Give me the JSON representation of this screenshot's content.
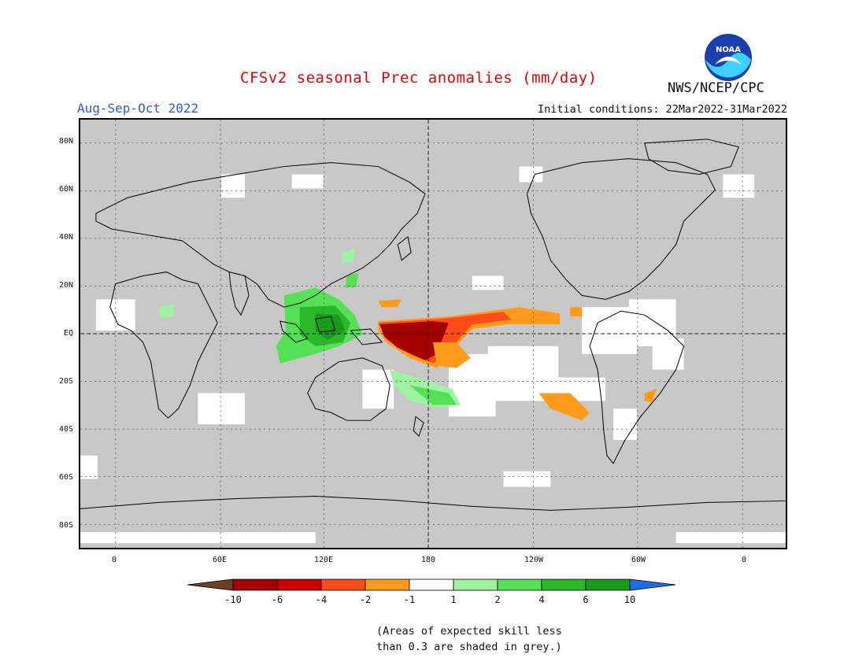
{
  "header": {
    "title": "CFSv2 seasonal Prec anomalies (mm/day)",
    "season": "Aug-Sep-Oct 2022",
    "initial_conditions": "Initial conditions: 22Mar2022-31Mar2022",
    "agency": "NWS/NCEP/CPC",
    "logo_text": "NOAA"
  },
  "axes": {
    "lat_labels": [
      "80N",
      "60N",
      "40N",
      "20N",
      "EQ",
      "20S",
      "40S",
      "60S",
      "80S"
    ],
    "lon_labels": [
      "0",
      "60E",
      "120E",
      "180",
      "120W",
      "60W",
      "0"
    ]
  },
  "legend": {
    "tick_labels": [
      "-10",
      "-6",
      "-4",
      "-2",
      "-1",
      "1",
      "2",
      "4",
      "6",
      "10"
    ],
    "colors": [
      "#6b4226",
      "#a50000",
      "#cc0000",
      "#ff4a1a",
      "#ff9a1a",
      "#ffffff",
      "#9ff29f",
      "#55e055",
      "#2ab82a",
      "#1a9a1a",
      "#1f6fe0"
    ]
  },
  "colors": {
    "land_mask": "#c8c8c8",
    "grid_line": "#555555"
  },
  "footnote": {
    "line1": "(Areas of expected skill less",
    "line2": "than 0.3 are shaded in grey.)"
  }
}
